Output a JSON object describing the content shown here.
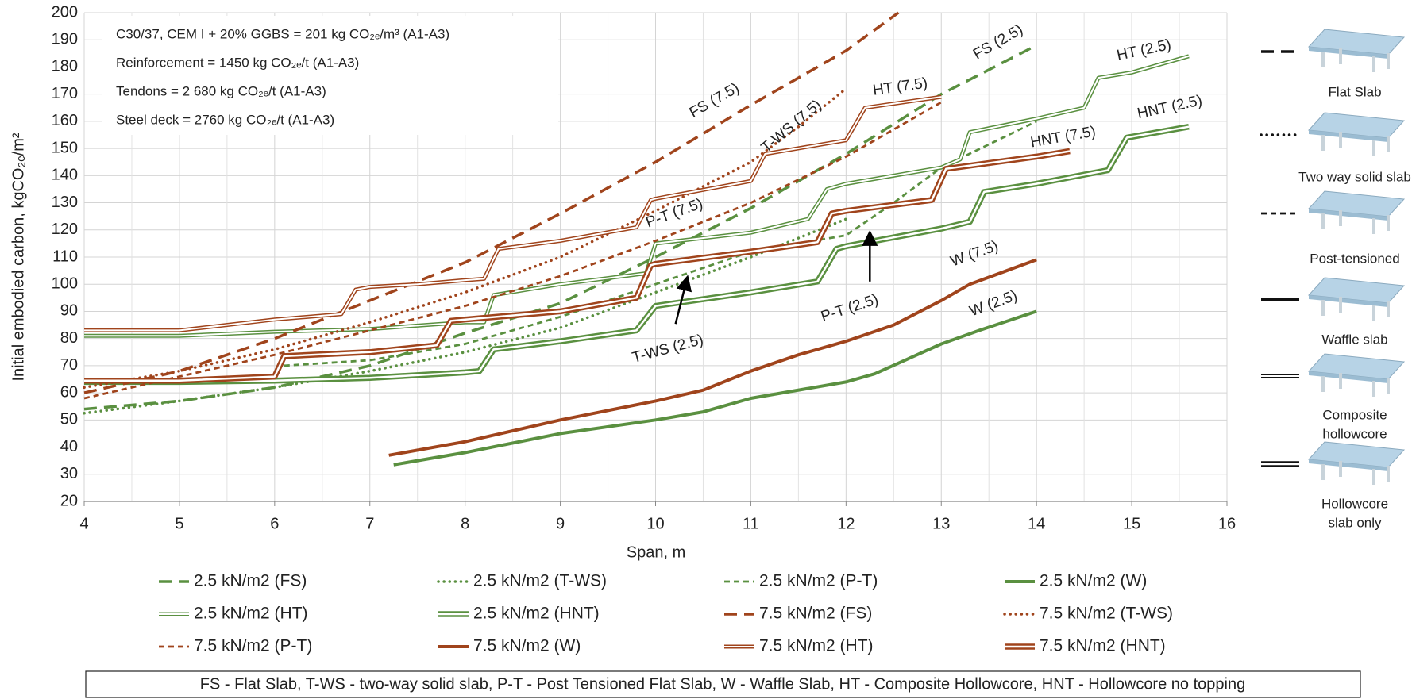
{
  "chart_data": {
    "type": "line",
    "xlabel": "Span, m",
    "ylabel": "Initial embodied carbon, kgCO₂ₑ/m²",
    "xlim": [
      4,
      16
    ],
    "ylim": [
      20,
      200
    ],
    "xticks": [
      4,
      5,
      6,
      7,
      8,
      9,
      10,
      11,
      12,
      13,
      14,
      15,
      16
    ],
    "yticks": [
      20,
      30,
      40,
      50,
      60,
      70,
      80,
      90,
      100,
      110,
      120,
      130,
      140,
      150,
      160,
      170,
      180,
      190,
      200
    ],
    "grid": true,
    "info_text": [
      "C30/37, CEM I + 20% GGBS  = 201 kg CO₂ₑ/m³ (A1-A3)",
      "Reinforcement  = 1450 kg CO₂ₑ/t (A1-A3)",
      "Tendons = 2 680 kg CO₂ₑ/t (A1-A3)",
      "Steel deck = 2760 kg CO₂ₑ/t (A1-A3)"
    ],
    "annotations": [
      "FS (7.5)",
      "T-WS (7.5)",
      "HT (7.5)",
      "FS (2.5)",
      "HT (2.5)",
      "HNT (2.5)",
      "HNT (7.5)",
      "P-T (7.5)",
      "P-T (2.5)",
      "T-WS (2.5)",
      "W (7.5)",
      "W (2.5)"
    ],
    "series": [
      {
        "name": "2.5 kN/m2 (FS)",
        "color": "#5a9040",
        "style": "long",
        "x": [
          4,
          5,
          6,
          7,
          8,
          9,
          10,
          11,
          12,
          13,
          14
        ],
        "values": [
          54,
          57,
          62,
          70,
          82,
          93,
          110,
          128,
          148,
          170,
          188
        ]
      },
      {
        "name": "2.5 kN/m2 (T-WS)",
        "color": "#5a9040",
        "style": "dot",
        "x": [
          4,
          5,
          6,
          7,
          8,
          9,
          10,
          11,
          12
        ],
        "values": [
          52.5,
          57,
          62,
          68,
          75,
          84,
          97,
          110,
          124
        ]
      },
      {
        "name": "2.5 kN/m2 (P-T)",
        "color": "#5a9040",
        "style": "short",
        "x": [
          6.1,
          7,
          8,
          9,
          10,
          11,
          12,
          12.5,
          13,
          14
        ],
        "values": [
          70,
          72,
          78,
          88,
          100,
          112,
          118,
          130,
          143,
          160
        ]
      },
      {
        "name": "2.5 kN/m2 (W)",
        "color": "#5a9040",
        "style": "solid",
        "x": [
          7.25,
          8,
          9,
          10,
          10.5,
          11,
          12,
          12.3,
          13,
          13.4,
          14
        ],
        "values": [
          33.5,
          38,
          45,
          50,
          53,
          58,
          64,
          67,
          78,
          83,
          90
        ]
      },
      {
        "name": "2.5 kN/m2 (HT)",
        "color": "#5a9040",
        "style": "double",
        "x": [
          4,
          5,
          6,
          7,
          8,
          8.2,
          8.3,
          9,
          9.9,
          10,
          11,
          11.6,
          11.8,
          12,
          13,
          13.2,
          13.3,
          14,
          14.5,
          14.65,
          15,
          15.6
        ],
        "values": [
          81,
          81,
          82.5,
          83.5,
          86,
          86,
          96,
          100,
          104,
          115,
          119,
          124,
          135,
          137,
          143,
          146,
          156,
          161,
          165,
          176,
          178,
          184
        ]
      },
      {
        "name": "2.5 kN/m2 (HNT)",
        "color": "#5a9040",
        "style": "double-thick",
        "x": [
          4,
          5,
          6,
          7,
          8,
          8.15,
          8.3,
          9,
          9.8,
          10,
          11,
          11.7,
          11.9,
          12,
          13,
          13.3,
          13.45,
          14,
          14.75,
          14.95,
          15.6
        ],
        "values": [
          64,
          64,
          64.5,
          65.5,
          67.5,
          68,
          76,
          79,
          83,
          92,
          97,
          101,
          113,
          114,
          120.5,
          123,
          134,
          137,
          142,
          154,
          158
        ]
      },
      {
        "name": "7.5 kN/m2 (FS)",
        "color": "#a0441c",
        "style": "long",
        "x": [
          4,
          5,
          6,
          7,
          8,
          9,
          10,
          11,
          12,
          12.55
        ],
        "values": [
          60,
          68,
          80,
          94,
          108,
          126,
          145,
          166,
          186,
          200
        ]
      },
      {
        "name": "7.5 kN/m2 (T-WS)",
        "color": "#a0441c",
        "style": "dot",
        "x": [
          4,
          5,
          6,
          7,
          8,
          9,
          10,
          11,
          11.5,
          12
        ],
        "values": [
          62,
          68,
          76,
          86,
          97,
          110,
          127,
          145,
          158,
          172
        ]
      },
      {
        "name": "7.5 kN/m2 (P-T)",
        "color": "#a0441c",
        "style": "short",
        "x": [
          4,
          5,
          6,
          7,
          8,
          9,
          10,
          11,
          12,
          13
        ],
        "values": [
          58,
          66,
          74,
          83,
          92,
          103,
          116,
          130,
          147,
          167
        ]
      },
      {
        "name": "7.5 kN/m2 (W)",
        "color": "#a0441c",
        "style": "solid",
        "x": [
          7.2,
          8,
          9,
          10,
          10.5,
          11,
          11.5,
          12,
          12.5,
          13,
          13.3,
          14
        ],
        "values": [
          37,
          42,
          50,
          57,
          61,
          68,
          74,
          79,
          85,
          94,
          100,
          109
        ]
      },
      {
        "name": "7.5 kN/m2 (HT)",
        "color": "#a0441c",
        "style": "double",
        "x": [
          4,
          5,
          6,
          6.7,
          6.85,
          7,
          7.5,
          8,
          8.2,
          8.35,
          9,
          9.8,
          9.95,
          10,
          11,
          11.15,
          12,
          12.2,
          13
        ],
        "values": [
          83,
          83,
          87,
          89,
          98,
          99,
          100,
          101.5,
          102,
          113,
          116,
          121,
          131,
          131.5,
          138,
          148,
          153,
          165,
          169
        ]
      },
      {
        "name": "7.5 kN/m2 (HNT)",
        "color": "#a0441c",
        "style": "double-thick",
        "x": [
          4,
          5,
          6,
          6.1,
          7,
          7.7,
          7.85,
          8,
          9,
          9.8,
          9.95,
          10,
          11,
          11.7,
          11.85,
          12,
          12.9,
          13.05,
          14,
          14.35
        ],
        "values": [
          64.5,
          64.5,
          66,
          73.5,
          75,
          77.5,
          86.5,
          87,
          90,
          95,
          107,
          107.5,
          112,
          115.5,
          126,
          127,
          131,
          142.5,
          147,
          149
        ]
      }
    ],
    "side_legend": [
      {
        "label": [
          "Flat Slab"
        ],
        "style": "long"
      },
      {
        "label": [
          "Two way solid slab"
        ],
        "style": "dot"
      },
      {
        "label": [
          "Post-tensioned"
        ],
        "style": "short"
      },
      {
        "label": [
          "Waffle slab"
        ],
        "style": "solid"
      },
      {
        "label": [
          "Composite",
          "hollowcore"
        ],
        "style": "double"
      },
      {
        "label": [
          "Hollowcore",
          "slab only"
        ],
        "style": "double-thick"
      }
    ],
    "note": "FS - Flat Slab, T-WS - two-way solid slab, P-T - Post Tensioned Flat Slab, W - Waffle Slab, HT - Composite Hollowcore, HNT - Hollowcore no topping"
  }
}
